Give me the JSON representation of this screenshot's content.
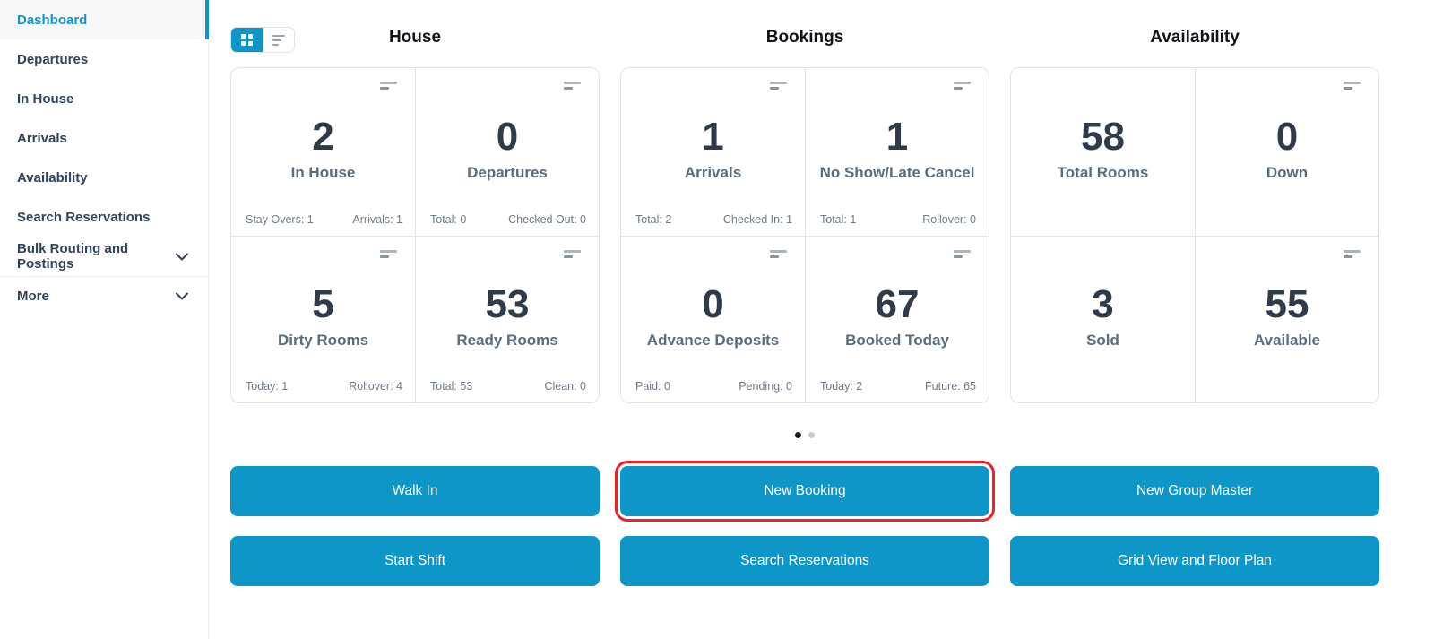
{
  "colors": {
    "accent": "#0f96c8",
    "highlight_border": "#ef2024",
    "active_dot": "#1b1b1b",
    "inactive_dot": "#c9c9c9"
  },
  "sidebar": {
    "items": [
      {
        "label": "Dashboard",
        "active": true,
        "chevron": false,
        "divider": false
      },
      {
        "label": "Departures",
        "active": false,
        "chevron": false,
        "divider": false
      },
      {
        "label": "In House",
        "active": false,
        "chevron": false,
        "divider": false
      },
      {
        "label": "Arrivals",
        "active": false,
        "chevron": false,
        "divider": false
      },
      {
        "label": "Availability",
        "active": false,
        "chevron": false,
        "divider": false
      },
      {
        "label": "Search Reservations",
        "active": false,
        "chevron": false,
        "divider": false
      },
      {
        "label": "Bulk Routing and Postings",
        "active": false,
        "chevron": true,
        "divider": false
      },
      {
        "label": "More",
        "active": false,
        "chevron": true,
        "divider": true
      }
    ]
  },
  "view_toggle": {
    "options": [
      {
        "name": "grid-view",
        "active": true
      },
      {
        "name": "list-view",
        "active": false
      }
    ]
  },
  "dashboard": {
    "groups": [
      {
        "title": "House",
        "cards": [
          {
            "value": "2",
            "label": "In House",
            "foot_left": "Stay Overs: 1",
            "foot_right": "Arrivals: 1",
            "menu_icon": true
          },
          {
            "value": "0",
            "label": "Departures",
            "foot_left": "Total: 0",
            "foot_right": "Checked Out: 0",
            "menu_icon": true
          },
          {
            "value": "5",
            "label": "Dirty Rooms",
            "foot_left": "Today: 1",
            "foot_right": "Rollover: 4",
            "menu_icon": true
          },
          {
            "value": "53",
            "label": "Ready Rooms",
            "foot_left": "Total: 53",
            "foot_right": "Clean: 0",
            "menu_icon": true
          }
        ]
      },
      {
        "title": "Bookings",
        "cards": [
          {
            "value": "1",
            "label": "Arrivals",
            "foot_left": "Total: 2",
            "foot_right": "Checked In: 1",
            "menu_icon": true
          },
          {
            "value": "1",
            "label": "No Show/Late Cancel",
            "foot_left": "Total: 1",
            "foot_right": "Rollover: 0",
            "menu_icon": true
          },
          {
            "value": "0",
            "label": "Advance Deposits",
            "foot_left": "Paid: 0",
            "foot_right": "Pending: 0",
            "menu_icon": true
          },
          {
            "value": "67",
            "label": "Booked Today",
            "foot_left": "Today: 2",
            "foot_right": "Future: 65",
            "menu_icon": true
          }
        ]
      },
      {
        "title": "Availability",
        "cards": [
          {
            "value": "58",
            "label": "Total Rooms",
            "foot_left": "",
            "foot_right": "",
            "menu_icon": false
          },
          {
            "value": "0",
            "label": "Down",
            "foot_left": "",
            "foot_right": "",
            "menu_icon": true
          },
          {
            "value": "3",
            "label": "Sold",
            "foot_left": "",
            "foot_right": "",
            "menu_icon": false
          },
          {
            "value": "55",
            "label": "Available",
            "foot_left": "",
            "foot_right": "",
            "menu_icon": true
          }
        ]
      }
    ]
  },
  "pagination": {
    "dots": [
      {
        "active": true
      },
      {
        "active": false
      }
    ]
  },
  "actions": {
    "rows": [
      [
        {
          "label": "Walk In",
          "highlighted": false
        },
        {
          "label": "New Booking",
          "highlighted": true
        },
        {
          "label": "New Group Master",
          "highlighted": false
        }
      ],
      [
        {
          "label": "Start Shift",
          "highlighted": false
        },
        {
          "label": "Search Reservations",
          "highlighted": false
        },
        {
          "label": "Grid View and Floor Plan",
          "highlighted": false
        }
      ]
    ]
  }
}
